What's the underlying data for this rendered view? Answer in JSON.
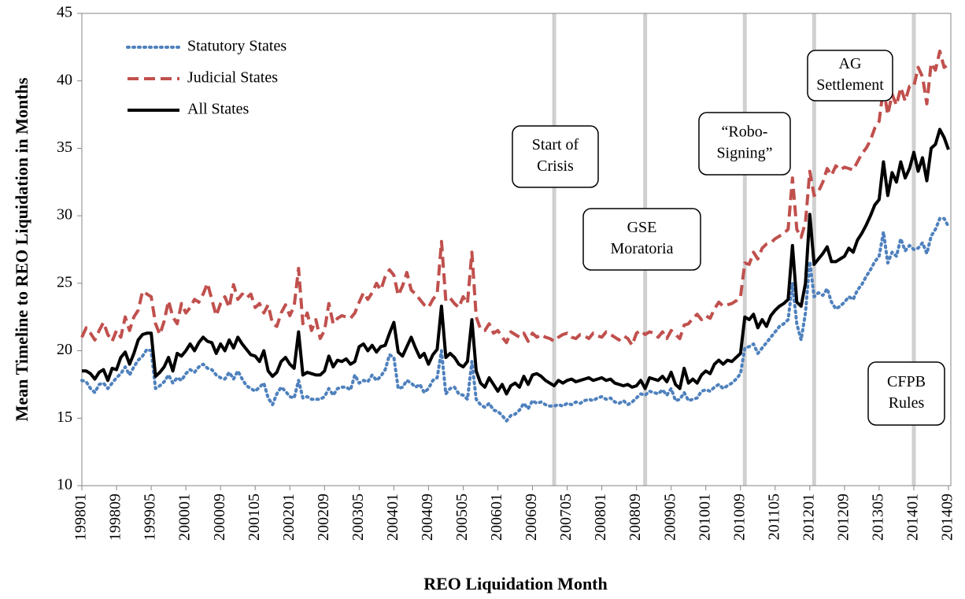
{
  "chart_data": {
    "type": "line",
    "x_label": "REO Liquidation Month",
    "y_label": "Mean Timeline to REO Liquidation in Months",
    "ylim": [
      10,
      45
    ],
    "yticks": [
      10,
      15,
      20,
      25,
      30,
      35,
      40,
      45
    ],
    "grid": false,
    "legend": "upper left",
    "categories": [
      "199801",
      null,
      null,
      null,
      null,
      null,
      null,
      null,
      "199809",
      null,
      null,
      null,
      null,
      null,
      null,
      null,
      "199905",
      null,
      null,
      null,
      null,
      null,
      null,
      null,
      "200001",
      null,
      null,
      null,
      null,
      null,
      null,
      null,
      "200009",
      null,
      null,
      null,
      null,
      null,
      null,
      null,
      "200105",
      null,
      null,
      null,
      null,
      null,
      null,
      null,
      "200201",
      null,
      null,
      null,
      null,
      null,
      null,
      null,
      "200209",
      null,
      null,
      null,
      null,
      null,
      null,
      null,
      "200305",
      null,
      null,
      null,
      null,
      null,
      null,
      null,
      "200401",
      null,
      null,
      null,
      null,
      null,
      null,
      null,
      "200409",
      null,
      null,
      null,
      null,
      null,
      null,
      null,
      "200505",
      null,
      null,
      null,
      null,
      null,
      null,
      null,
      "200601",
      null,
      null,
      null,
      null,
      null,
      null,
      null,
      "200609",
      null,
      null,
      null,
      null,
      null,
      null,
      null,
      "200705",
      null,
      null,
      null,
      null,
      null,
      null,
      null,
      "200801",
      null,
      null,
      null,
      null,
      null,
      null,
      null,
      "200809",
      null,
      null,
      null,
      null,
      null,
      null,
      null,
      "200905",
      null,
      null,
      null,
      null,
      null,
      null,
      null,
      "201001",
      null,
      null,
      null,
      null,
      null,
      null,
      null,
      "201009",
      null,
      null,
      null,
      null,
      null,
      null,
      null,
      "201105",
      null,
      null,
      null,
      null,
      null,
      null,
      null,
      "201201",
      null,
      null,
      null,
      null,
      null,
      null,
      null,
      "201209",
      null,
      null,
      null,
      null,
      null,
      null,
      null,
      "201305",
      null,
      null,
      null,
      null,
      null,
      null,
      null,
      "201401",
      null,
      null,
      null,
      null,
      null,
      null,
      null,
      "201409"
    ],
    "series": [
      {
        "name": "Statutory States",
        "color": "#4f81bd",
        "style": "dotted",
        "values": [
          17.8,
          17.7,
          17.2,
          16.9,
          17.5,
          17.6,
          17.2,
          17.6,
          18.0,
          18.3,
          18.8,
          18.2,
          18.8,
          19.3,
          19.6,
          20.1,
          20.0,
          17.2,
          17.4,
          17.7,
          18.2,
          17.6,
          18.0,
          17.8,
          18.3,
          18.6,
          18.4,
          18.8,
          19.0,
          18.7,
          18.6,
          18.2,
          18.0,
          17.9,
          18.4,
          17.9,
          18.5,
          17.9,
          17.4,
          17.2,
          17.0,
          17.3,
          17.6,
          16.5,
          16.0,
          16.8,
          17.3,
          17.0,
          16.6,
          16.5,
          17.8,
          16.5,
          16.6,
          16.4,
          16.4,
          16.4,
          16.6,
          17.2,
          16.7,
          17.2,
          17.3,
          17.3,
          17.1,
          18.2,
          17.6,
          17.8,
          17.7,
          18.2,
          17.8,
          18.1,
          18.6,
          19.7,
          19.5,
          17.2,
          17.3,
          17.8,
          17.6,
          17.3,
          17.5,
          16.9,
          17.2,
          17.8,
          18.0,
          20.0,
          16.8,
          17.2,
          17.3,
          16.8,
          16.7,
          16.4,
          19.2,
          16.4,
          16.0,
          15.8,
          16.1,
          15.6,
          15.5,
          15.2,
          14.8,
          15.2,
          15.3,
          15.6,
          16.1,
          15.7,
          16.3,
          16.1,
          16.2,
          16.0,
          15.9,
          15.9,
          16.0,
          15.9,
          16.1,
          16.0,
          16.2,
          16.1,
          16.3,
          16.4,
          16.3,
          16.5,
          16.6,
          16.4,
          16.5,
          16.2,
          16.1,
          16.3,
          16.0,
          16.2,
          16.5,
          16.8,
          16.7,
          17.0,
          16.9,
          16.8,
          17.1,
          16.7,
          17.2,
          16.3,
          16.4,
          16.9,
          16.3,
          16.4,
          16.5,
          17.0,
          17.1,
          17.0,
          17.3,
          17.5,
          17.2,
          17.4,
          17.6,
          17.9,
          18.3,
          20.2,
          20.3,
          20.5,
          19.8,
          20.2,
          20.6,
          21.0,
          21.4,
          21.8,
          22.0,
          22.3,
          25.0,
          22.0,
          20.8,
          22.8,
          26.6,
          24.0,
          24.3,
          24.1,
          24.6,
          23.6,
          23.1,
          23.3,
          23.6,
          24.0,
          23.8,
          24.5,
          24.9,
          25.5,
          26.0,
          26.6,
          27.0,
          28.8,
          26.5,
          27.3,
          27.0,
          28.3,
          27.4,
          27.8,
          27.5,
          27.6,
          28.0,
          27.2,
          28.5,
          29.0,
          29.8,
          29.8,
          29.2
        ]
      },
      {
        "name": "Judicial States",
        "color": "#c0504d",
        "style": "dashed",
        "values": [
          21.0,
          21.7,
          21.3,
          20.8,
          21.5,
          22.1,
          21.2,
          20.7,
          21.5,
          21.0,
          22.5,
          21.5,
          22.5,
          23.0,
          24.4,
          24.2,
          24.0,
          22.0,
          21.2,
          22.2,
          23.7,
          22.5,
          22.0,
          23.5,
          22.8,
          23.2,
          23.8,
          23.6,
          24.2,
          25.0,
          23.8,
          22.6,
          23.5,
          24.0,
          23.2,
          24.9,
          23.8,
          24.2,
          23.9,
          24.2,
          23.2,
          23.5,
          22.8,
          23.4,
          22.0,
          21.8,
          22.8,
          23.4,
          22.6,
          23.3,
          26.1,
          22.0,
          22.8,
          21.5,
          22.3,
          20.9,
          21.5,
          23.5,
          22.0,
          22.4,
          22.6,
          22.5,
          22.4,
          22.8,
          23.6,
          24.3,
          23.8,
          24.3,
          25.0,
          24.5,
          25.5,
          26.0,
          25.6,
          24.1,
          24.8,
          25.8,
          24.5,
          24.2,
          23.8,
          23.4,
          23.2,
          23.8,
          24.2,
          28.1,
          23.7,
          23.9,
          23.5,
          23.2,
          24.0,
          23.5,
          27.3,
          22.5,
          21.6,
          21.5,
          22.0,
          21.3,
          21.5,
          21.0,
          20.6,
          21.4,
          21.2,
          21.0,
          21.3,
          20.7,
          21.3,
          21.0,
          21.2,
          21.0,
          20.9,
          20.7,
          21.0,
          21.2,
          21.3,
          21.0,
          20.9,
          21.2,
          21.1,
          20.9,
          21.3,
          21.1,
          21.0,
          21.4,
          21.2,
          21.0,
          20.8,
          21.1,
          20.9,
          20.4,
          21.3,
          21.5,
          21.2,
          21.4,
          21.3,
          21.0,
          21.4,
          20.9,
          21.5,
          21.2,
          20.9,
          21.9,
          22.0,
          22.4,
          22.7,
          22.3,
          22.6,
          22.4,
          23.1,
          23.6,
          23.3,
          23.4,
          23.5,
          23.7,
          24.0,
          26.5,
          26.4,
          27.3,
          26.8,
          27.6,
          27.9,
          28.0,
          28.3,
          28.5,
          28.7,
          29.0,
          32.8,
          29.0,
          28.4,
          29.5,
          33.3,
          31.5,
          31.8,
          32.5,
          33.5,
          33.0,
          33.7,
          33.4,
          33.6,
          33.5,
          33.4,
          34.0,
          34.6,
          35.0,
          35.6,
          36.5,
          37.0,
          39.5,
          37.5,
          39.0,
          38.2,
          39.5,
          38.5,
          39.6,
          39.6,
          41.0,
          40.3,
          38.3,
          41.3,
          40.8,
          42.2,
          41.0,
          41.2
        ]
      },
      {
        "name": "All States",
        "color": "#000000",
        "style": "solid",
        "values": [
          18.5,
          18.5,
          18.3,
          17.9,
          18.4,
          18.6,
          17.8,
          18.7,
          18.6,
          19.5,
          19.9,
          19.0,
          19.8,
          20.8,
          21.2,
          21.3,
          21.3,
          18.1,
          18.4,
          18.8,
          19.5,
          18.5,
          19.8,
          19.6,
          20.0,
          20.5,
          20.0,
          20.6,
          21.0,
          20.7,
          20.6,
          19.8,
          20.5,
          20.0,
          20.8,
          20.2,
          21.0,
          20.5,
          20.1,
          19.7,
          19.6,
          19.2,
          20.0,
          18.5,
          18.1,
          18.4,
          19.2,
          19.5,
          19.0,
          18.7,
          21.4,
          18.2,
          18.4,
          18.3,
          18.2,
          18.2,
          18.5,
          19.6,
          18.8,
          19.3,
          19.2,
          19.4,
          19.0,
          19.2,
          20.3,
          20.5,
          20.0,
          20.4,
          19.9,
          20.3,
          20.4,
          21.3,
          22.1,
          19.9,
          19.6,
          20.3,
          21.0,
          20.2,
          19.5,
          19.8,
          19.0,
          19.7,
          20.1,
          23.3,
          19.5,
          19.8,
          19.5,
          19.0,
          18.8,
          19.2,
          22.3,
          18.5,
          17.6,
          17.3,
          18.0,
          17.5,
          17.0,
          17.5,
          16.8,
          17.4,
          17.6,
          17.3,
          18.1,
          17.5,
          18.2,
          18.3,
          18.1,
          17.8,
          17.6,
          17.4,
          17.8,
          17.6,
          17.8,
          17.9,
          17.7,
          17.8,
          17.9,
          18.0,
          17.8,
          17.9,
          18.0,
          17.8,
          17.9,
          17.6,
          17.5,
          17.4,
          17.5,
          17.3,
          17.4,
          17.8,
          17.2,
          18.0,
          17.9,
          17.8,
          18.1,
          17.7,
          18.4,
          17.5,
          17.2,
          18.7,
          17.6,
          17.9,
          17.6,
          18.2,
          18.5,
          18.3,
          19.0,
          19.3,
          19.0,
          19.3,
          19.2,
          19.5,
          19.8,
          22.5,
          22.3,
          22.7,
          21.7,
          22.3,
          21.8,
          22.6,
          23.0,
          23.3,
          23.5,
          23.8,
          27.8,
          23.6,
          23.3,
          25.0,
          30.1,
          26.4,
          26.8,
          27.2,
          27.7,
          26.6,
          26.6,
          26.8,
          27.0,
          27.6,
          27.3,
          28.2,
          28.7,
          29.3,
          30.0,
          30.8,
          31.2,
          34.0,
          31.5,
          33.2,
          32.5,
          34.0,
          32.8,
          33.5,
          34.7,
          33.3,
          34.3,
          32.6,
          35.0,
          35.3,
          36.4,
          35.8,
          34.9
        ]
      }
    ],
    "annotations": [
      {
        "lines": [
          "Start of",
          "Crisis"
        ],
        "x": "200702"
      },
      {
        "lines": [
          "GSE",
          "Moratoria"
        ],
        "x": "200811"
      },
      {
        "lines": [
          "“Robo-",
          "Signing”"
        ],
        "x": "201010"
      },
      {
        "lines": [
          "AG",
          "Settlement"
        ],
        "x": "201202"
      },
      {
        "lines": [
          "CFPB",
          "Rules"
        ],
        "x": "201401"
      }
    ]
  }
}
